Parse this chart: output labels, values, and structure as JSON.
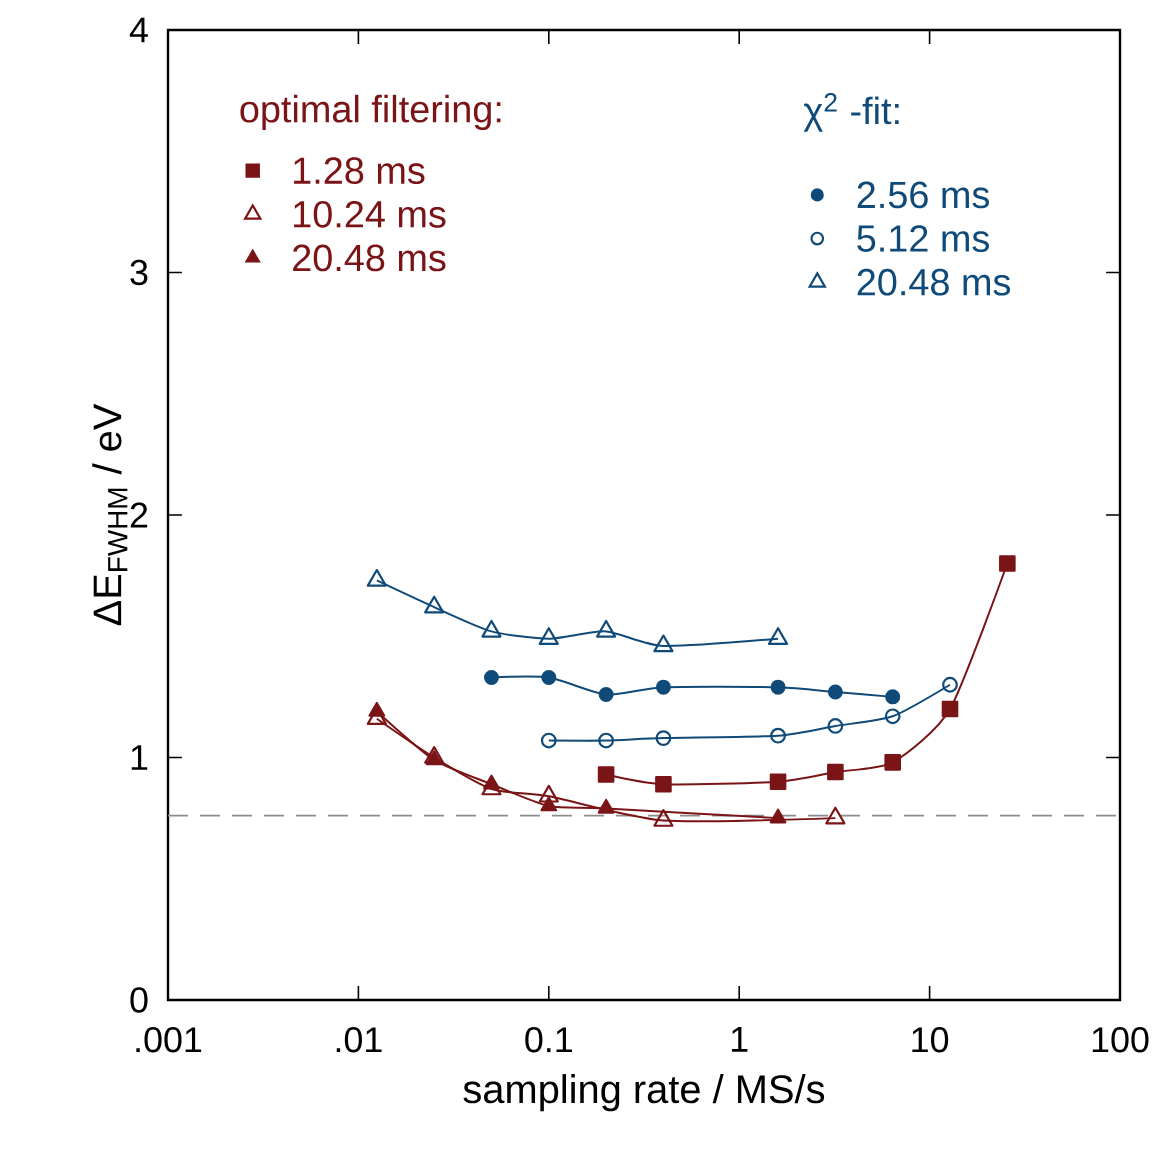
{
  "chart_data": {
    "type": "line",
    "xlabel": "sampling rate / MS/s",
    "ylabel": "ΔE$_{FWHM}$ / eV",
    "annotations": [
      "optimal filtering:",
      "χ$^{2}$ -fit:"
    ],
    "log": "x",
    "xlim": [
      0.001,
      100
    ],
    "ylim": [
      0,
      4
    ],
    "xticks": [
      {
        "value": 0.001,
        "label": ".001"
      },
      {
        "value": 0.01,
        "label": ".01"
      },
      {
        "value": 0.1,
        "label": "0.1"
      },
      {
        "value": 1,
        "label": "1"
      },
      {
        "value": 10,
        "label": "10"
      },
      {
        "value": 100,
        "label": "100"
      }
    ],
    "yticks": [
      0,
      1,
      2,
      3,
      4
    ],
    "grid": false,
    "legend": "top",
    "line_style": "solid",
    "ref_lines": [
      {
        "axis": "y",
        "value": 0.76,
        "color": "#8c8c8c",
        "line_style": "dashed"
      }
    ],
    "series": [
      {
        "name": "1.28 ms",
        "color": "#7a1416",
        "marker": "square",
        "x": [
          0.2,
          0.4,
          1.6,
          3.2,
          6.4,
          12.8,
          25.6
        ],
        "values": [
          0.93,
          0.89,
          0.9,
          0.94,
          0.98,
          1.2,
          1.8
        ]
      },
      {
        "name": "10.24 ms",
        "color": "#7a1416",
        "marker": "triangle_open",
        "x": [
          0.0125,
          0.025,
          0.05,
          0.1,
          0.4,
          3.2
        ],
        "values": [
          1.16,
          1.0,
          0.87,
          0.84,
          0.74,
          0.75
        ]
      },
      {
        "name": "20.48 ms",
        "color": "#7a1416",
        "marker": "triangle",
        "x": [
          0.0125,
          0.025,
          0.05,
          0.1,
          0.2,
          1.6
        ],
        "values": [
          1.19,
          0.99,
          0.89,
          0.8,
          0.79,
          0.75
        ]
      },
      {
        "name": "2.56 ms",
        "color": "#0f4a78",
        "marker": "circle",
        "x": [
          0.05,
          0.1,
          0.2,
          0.4,
          1.6,
          3.2,
          6.4
        ],
        "values": [
          1.33,
          1.33,
          1.26,
          1.29,
          1.29,
          1.27,
          1.25
        ]
      },
      {
        "name": "5.12 ms",
        "color": "#0f4a78",
        "marker": "circle_open",
        "x": [
          0.1,
          0.2,
          0.4,
          1.6,
          3.2,
          6.4,
          12.8
        ],
        "values": [
          1.07,
          1.07,
          1.08,
          1.09,
          1.13,
          1.17,
          1.3
        ]
      },
      {
        "name": "20.48 ms",
        "color": "#0f4a78",
        "marker": "triangle_open",
        "x": [
          0.0125,
          0.025,
          0.05,
          0.1,
          0.2,
          0.4,
          1.6
        ],
        "values": [
          1.73,
          1.62,
          1.52,
          1.49,
          1.52,
          1.46,
          1.49
        ]
      }
    ]
  }
}
